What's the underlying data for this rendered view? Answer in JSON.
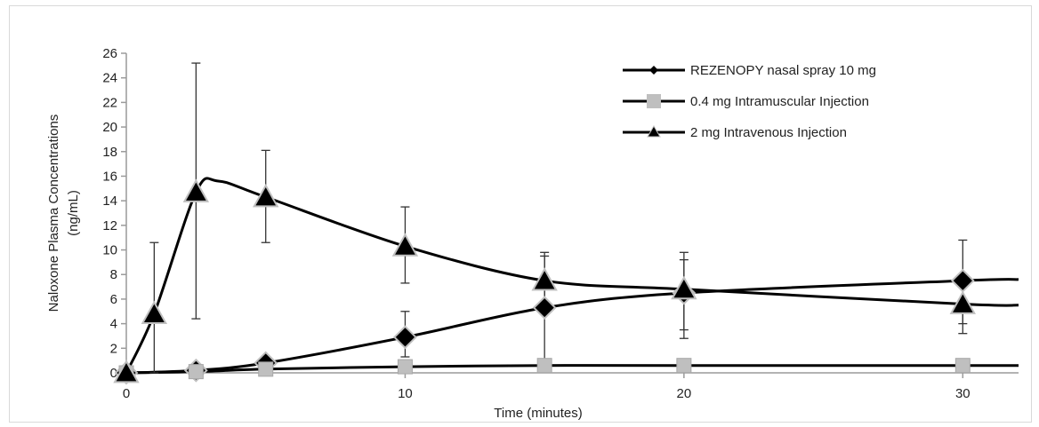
{
  "chart_data": {
    "type": "line",
    "title": "",
    "xlabel": "Time (minutes)",
    "ylabel_lines": [
      "Naloxone Plasma Concentrations",
      "(ng/mL)"
    ],
    "xlim": [
      0,
      32
    ],
    "ylim": [
      0,
      26
    ],
    "x_ticks": [
      0,
      10,
      20,
      30
    ],
    "y_ticks": [
      0,
      2,
      4,
      6,
      8,
      10,
      12,
      14,
      16,
      18,
      20,
      22,
      24,
      26
    ],
    "x_tick_labels": [
      "0",
      "10",
      "20",
      "30"
    ],
    "y_tick_labels": [
      "0",
      "2",
      "4",
      "6",
      "8",
      "10",
      "12",
      "14",
      "16",
      "18",
      "20",
      "22",
      "24",
      "26"
    ],
    "grid": false,
    "legend_position": "top-right",
    "series": [
      {
        "name": "REZENOPY nasal spray 10 mg",
        "marker": "diamond",
        "marker_color": "#000000",
        "line_color": "#000000",
        "points": [
          {
            "x": 0,
            "y": 0
          },
          {
            "x": 2.5,
            "y": 0.2
          },
          {
            "x": 5,
            "y": 0.8
          },
          {
            "x": 10,
            "y": 2.9
          },
          {
            "x": 15,
            "y": 5.3
          },
          {
            "x": 20,
            "y": 6.5
          },
          {
            "x": 30,
            "y": 7.5
          }
        ],
        "curve_end": {
          "x": 32,
          "y": 7.6
        },
        "error_bars": [
          {
            "x": 10,
            "low": 1.3,
            "high": 5.0
          },
          {
            "x": 15,
            "low": 0.4,
            "high": 9.8
          },
          {
            "x": 20,
            "low": 3.5,
            "high": 9.8
          },
          {
            "x": 30,
            "low": 4.0,
            "high": 10.8
          }
        ]
      },
      {
        "name": "0.4 mg Intramuscular Injection",
        "marker": "square",
        "marker_color": "#bfbfbf",
        "line_color": "#000000",
        "points": [
          {
            "x": 0,
            "y": 0
          },
          {
            "x": 2.5,
            "y": 0.1
          },
          {
            "x": 5,
            "y": 0.3
          },
          {
            "x": 10,
            "y": 0.5
          },
          {
            "x": 15,
            "y": 0.6
          },
          {
            "x": 20,
            "y": 0.6
          },
          {
            "x": 30,
            "y": 0.6
          }
        ],
        "curve_end": {
          "x": 32,
          "y": 0.6
        },
        "error_bars": []
      },
      {
        "name": "2 mg Intravenous Injection",
        "marker": "triangle",
        "marker_color": "#000000",
        "line_color": "#000000",
        "points": [
          {
            "x": 0,
            "y": 0
          },
          {
            "x": 1,
            "y": 4.8
          },
          {
            "x": 2.5,
            "y": 14.7
          },
          {
            "x": 5,
            "y": 14.3
          },
          {
            "x": 10,
            "y": 10.3
          },
          {
            "x": 15,
            "y": 7.5
          },
          {
            "x": 20,
            "y": 6.8
          },
          {
            "x": 30,
            "y": 5.6
          }
        ],
        "curve_peak": {
          "x": 3.3,
          "y": 15.6
        },
        "curve_end": {
          "x": 32,
          "y": 5.5
        },
        "error_bars": [
          {
            "x": 1,
            "low": 0,
            "high": 10.6
          },
          {
            "x": 2.5,
            "low": 4.4,
            "high": 25.2
          },
          {
            "x": 5,
            "low": 10.6,
            "high": 18.1
          },
          {
            "x": 10,
            "low": 7.3,
            "high": 13.5
          },
          {
            "x": 15,
            "low": 5.5,
            "high": 9.5
          },
          {
            "x": 20,
            "low": 2.8,
            "high": 9.2
          },
          {
            "x": 30,
            "low": 3.2,
            "high": 8.0
          }
        ]
      }
    ]
  }
}
